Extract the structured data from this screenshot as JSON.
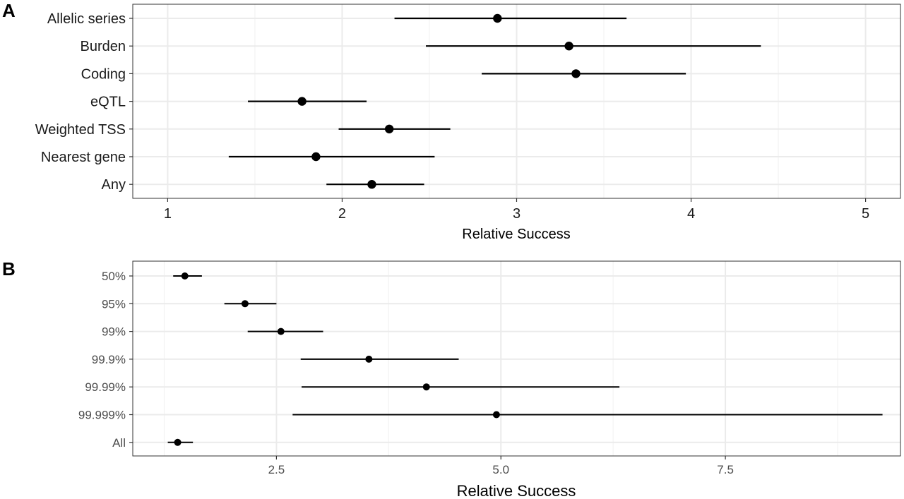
{
  "chart_data": [
    {
      "panel_label": "A",
      "type": "scatter",
      "subtype": "forest-plot-with-intervals",
      "title": "",
      "xlabel": "Relative Success",
      "ylabel": "",
      "xlim": [
        0.8,
        5.2
      ],
      "xticks": [
        1,
        2,
        3,
        4,
        5
      ],
      "xtick_labels": [
        "1",
        "2",
        "3",
        "4",
        "5"
      ],
      "grid": true,
      "categories": [
        "Allelic series",
        "Burden",
        "Coding",
        "eQTL",
        "Weighted TSS",
        "Nearest gene",
        "Any"
      ],
      "estimates": [
        2.89,
        3.3,
        3.34,
        1.77,
        2.27,
        1.85,
        2.17
      ],
      "lower": [
        2.3,
        2.48,
        2.8,
        1.46,
        1.98,
        1.35,
        1.91
      ],
      "upper": [
        3.63,
        4.4,
        3.97,
        2.14,
        2.62,
        2.53,
        2.47
      ],
      "colors": {
        "point": "#000000",
        "grid_major": "#ebebeb",
        "grid_minor": "#f2f2f2",
        "border": "#333333"
      }
    },
    {
      "panel_label": "B",
      "type": "scatter",
      "subtype": "forest-plot-with-intervals",
      "title": "",
      "xlabel": "Relative Success",
      "ylabel": "",
      "xlim": [
        0.9,
        9.45
      ],
      "xticks": [
        2.5,
        5.0,
        7.5
      ],
      "xtick_labels": [
        "2.5",
        "5.0",
        "7.5"
      ],
      "grid": true,
      "categories": [
        "50%",
        "95%",
        "99%",
        "99.9%",
        "99.99%",
        "99.999%",
        "All"
      ],
      "estimates": [
        1.48,
        2.15,
        2.55,
        3.53,
        4.17,
        4.95,
        1.4
      ],
      "lower": [
        1.35,
        1.92,
        2.18,
        2.77,
        2.78,
        2.68,
        1.29
      ],
      "upper": [
        1.67,
        2.5,
        3.02,
        4.53,
        6.32,
        9.25,
        1.57
      ],
      "colors": {
        "point": "#000000",
        "grid_major": "#ebebeb",
        "grid_minor": "#f2f2f2",
        "border": "#333333"
      }
    }
  ]
}
